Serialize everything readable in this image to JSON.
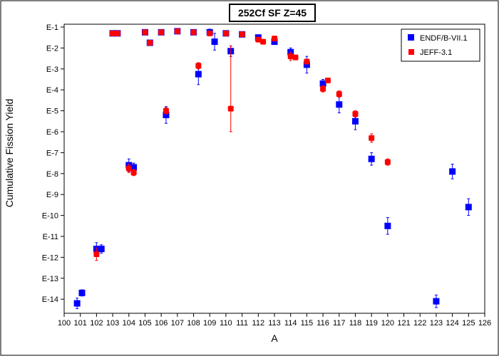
{
  "chart_data": {
    "type": "scatter",
    "title": "252Cf SF Z=45",
    "xlabel": "A",
    "ylabel": "Cumulative Fission Yield",
    "xlim": [
      100,
      126
    ],
    "ylim_exponent": [
      -15,
      -1
    ],
    "y_scale": "log",
    "x_ticks": [
      "100",
      "101",
      "102",
      "103",
      "104",
      "105",
      "106",
      "107",
      "108",
      "109",
      "110",
      "111",
      "112",
      "113",
      "114",
      "115",
      "116",
      "117",
      "118",
      "119",
      "120",
      "121",
      "122",
      "123",
      "124",
      "125",
      "126"
    ],
    "y_ticks": [
      "E-1",
      "E-2",
      "E-3",
      "E-4",
      "E-5",
      "E-6",
      "E-7",
      "E-8",
      "E-9",
      "E-10",
      "E-11",
      "E-12",
      "E-13",
      "E-14"
    ],
    "legend_position": "top-right",
    "series": [
      {
        "name": "ENDF/B-VII.1",
        "color": "#0000ff",
        "marker": "square",
        "points": [
          {
            "x": 100.8,
            "log": -14.2,
            "errlo": 0.25,
            "errhi": 0.25
          },
          {
            "x": 101.1,
            "log": -13.7,
            "errlo": 0.15,
            "errhi": 0.15
          },
          {
            "x": 102.0,
            "log": -11.6,
            "errlo": 0.3,
            "errhi": 0.3
          },
          {
            "x": 102.3,
            "log": -11.6,
            "errlo": 0.2,
            "errhi": 0.2
          },
          {
            "x": 103.0,
            "log": -1.3,
            "errlo": 0,
            "errhi": 0
          },
          {
            "x": 103.3,
            "log": -1.3,
            "errlo": 0,
            "errhi": 0
          },
          {
            "x": 104.0,
            "log": -7.6,
            "errlo": 0.3,
            "errhi": 0.3
          },
          {
            "x": 104.3,
            "log": -7.7,
            "errlo": 0.2,
            "errhi": 0.2
          },
          {
            "x": 105.0,
            "log": -1.25,
            "errlo": 0,
            "errhi": 0
          },
          {
            "x": 105.3,
            "log": -1.75,
            "errlo": 0,
            "errhi": 0
          },
          {
            "x": 106.0,
            "log": -1.25,
            "errlo": 0,
            "errhi": 0
          },
          {
            "x": 106.3,
            "log": -5.2,
            "errlo": 0.4,
            "errhi": 0.4
          },
          {
            "x": 107.0,
            "log": -1.2,
            "errlo": 0,
            "errhi": 0
          },
          {
            "x": 108.0,
            "log": -1.25,
            "errlo": 0,
            "errhi": 0
          },
          {
            "x": 108.3,
            "log": -3.25,
            "errlo": 0.5,
            "errhi": 0.5
          },
          {
            "x": 109.0,
            "log": -1.25,
            "errlo": 0.15,
            "errhi": 0.15
          },
          {
            "x": 109.3,
            "log": -1.7,
            "errlo": 0.4,
            "errhi": 0.4
          },
          {
            "x": 110.0,
            "log": -1.3,
            "errlo": 0,
            "errhi": 0
          },
          {
            "x": 110.3,
            "log": -2.15,
            "errlo": 0.25,
            "errhi": 0.25
          },
          {
            "x": 111.0,
            "log": -1.35,
            "errlo": 0,
            "errhi": 0
          },
          {
            "x": 112.0,
            "log": -1.5,
            "errlo": 0.1,
            "errhi": 0.1
          },
          {
            "x": 113.0,
            "log": -1.7,
            "errlo": 0,
            "errhi": 0
          },
          {
            "x": 114.0,
            "log": -2.2,
            "errlo": 0.2,
            "errhi": 0.2
          },
          {
            "x": 115.0,
            "log": -2.8,
            "errlo": 0.4,
            "errhi": 0.4
          },
          {
            "x": 116.0,
            "log": -3.7,
            "errlo": 0.2,
            "errhi": 0.2
          },
          {
            "x": 117.0,
            "log": -4.7,
            "errlo": 0.4,
            "errhi": 0.4
          },
          {
            "x": 118.0,
            "log": -5.5,
            "errlo": 0.4,
            "errhi": 0.4
          },
          {
            "x": 119.0,
            "log": -7.3,
            "errlo": 0.3,
            "errhi": 0.3
          },
          {
            "x": 120.0,
            "log": -10.5,
            "errlo": 0.4,
            "errhi": 0.4
          },
          {
            "x": 123.0,
            "log": -14.1,
            "errlo": 0.3,
            "errhi": 0.3
          },
          {
            "x": 124.0,
            "log": -7.9,
            "errlo": 0.35,
            "errhi": 0.35
          },
          {
            "x": 125.0,
            "log": -9.6,
            "errlo": 0.4,
            "errhi": 0.4
          }
        ]
      },
      {
        "name": "JEFF-3.1",
        "color": "#ff0000",
        "marker": "square",
        "points": [
          {
            "x": 102.0,
            "log": -11.85,
            "errlo": 0.3,
            "errhi": 0.3
          },
          {
            "x": 103.0,
            "log": -1.3,
            "errlo": 0,
            "errhi": 0
          },
          {
            "x": 103.3,
            "log": -1.3,
            "errlo": 0,
            "errhi": 0
          },
          {
            "x": 104.0,
            "log": -7.75,
            "errlo": 0.2,
            "errhi": 0.2
          },
          {
            "x": 104.3,
            "log": -7.95,
            "errlo": 0.15,
            "errhi": 0.15
          },
          {
            "x": 105.0,
            "log": -1.25,
            "errlo": 0,
            "errhi": 0
          },
          {
            "x": 105.3,
            "log": -1.75,
            "errlo": 0,
            "errhi": 0
          },
          {
            "x": 106.0,
            "log": -1.25,
            "errlo": 0,
            "errhi": 0
          },
          {
            "x": 106.3,
            "log": -5.0,
            "errlo": 0.15,
            "errhi": 0.15
          },
          {
            "x": 107.0,
            "log": -1.2,
            "errlo": 0,
            "errhi": 0
          },
          {
            "x": 108.0,
            "log": -1.25,
            "errlo": 0,
            "errhi": 0
          },
          {
            "x": 108.3,
            "log": -2.85,
            "errlo": 0.15,
            "errhi": 0.15
          },
          {
            "x": 109.0,
            "log": -1.3,
            "errlo": 0,
            "errhi": 0
          },
          {
            "x": 110.0,
            "log": -1.3,
            "errlo": 0,
            "errhi": 0
          },
          {
            "x": 110.3,
            "log": -4.9,
            "errlo": 1.1,
            "errhi": 3.0
          },
          {
            "x": 111.0,
            "log": -1.35,
            "errlo": 0,
            "errhi": 0
          },
          {
            "x": 112.0,
            "log": -1.6,
            "errlo": 0,
            "errhi": 0
          },
          {
            "x": 112.3,
            "log": -1.7,
            "errlo": 0,
            "errhi": 0
          },
          {
            "x": 113.0,
            "log": -1.55,
            "errlo": 0.1,
            "errhi": 0.1
          },
          {
            "x": 114.0,
            "log": -2.4,
            "errlo": 0.2,
            "errhi": 0.2
          },
          {
            "x": 114.3,
            "log": -2.45,
            "errlo": 0.1,
            "errhi": 0.1
          },
          {
            "x": 115.0,
            "log": -2.65,
            "errlo": 0.1,
            "errhi": 0.1
          },
          {
            "x": 116.0,
            "log": -3.95,
            "errlo": 0.15,
            "errhi": 0.15
          },
          {
            "x": 116.3,
            "log": -3.55,
            "errlo": 0.1,
            "errhi": 0.1
          },
          {
            "x": 117.0,
            "log": -4.2,
            "errlo": 0.15,
            "errhi": 0.15
          },
          {
            "x": 118.0,
            "log": -5.15,
            "errlo": 0.15,
            "errhi": 0.15
          },
          {
            "x": 119.0,
            "log": -6.3,
            "errlo": 0.2,
            "errhi": 0.2
          },
          {
            "x": 120.0,
            "log": -7.45,
            "errlo": 0.15,
            "errhi": 0.15
          }
        ]
      }
    ]
  }
}
